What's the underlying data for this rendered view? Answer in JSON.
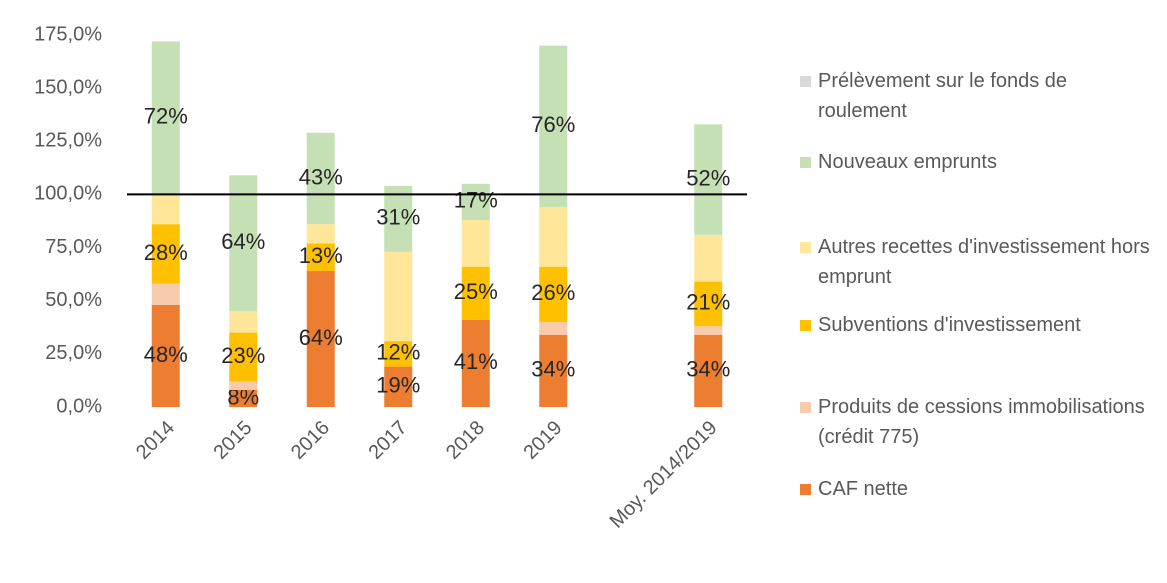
{
  "chart_data": {
    "type": "stacked_bar",
    "categories": [
      "2014",
      "2015",
      "2016",
      "2017",
      "2018",
      "2019",
      null,
      "Moy. 2014/2019"
    ],
    "series": [
      {
        "name": "CAF nette",
        "color": "#ed7d31",
        "values": [
          48,
          8,
          64,
          19,
          41,
          34,
          null,
          34
        ],
        "value_labels": [
          "48%",
          "8%",
          "64%",
          "19%",
          "41%",
          "34%",
          null,
          "34%"
        ]
      },
      {
        "name": "Produits de cessions immobilisations (crédit 775)",
        "color": "#f8cbad",
        "values": [
          10,
          4,
          0,
          0,
          0,
          6,
          null,
          4
        ]
      },
      {
        "name": "Subventions d'investissement",
        "color": "#ffc000",
        "values": [
          28,
          23,
          13,
          12,
          25,
          26,
          null,
          21
        ],
        "value_labels": [
          "28%",
          "23%",
          "13%",
          "12%",
          "25%",
          "26%",
          null,
          "21%"
        ]
      },
      {
        "name": "Autres recettes d'investissement hors emprunt",
        "color": "#ffe699",
        "values": [
          14,
          10,
          9,
          42,
          22,
          28,
          null,
          22
        ]
      },
      {
        "name": "Nouveaux emprunts",
        "color": "#c5e0b4",
        "values": [
          72,
          64,
          43,
          31,
          17,
          76,
          null,
          52
        ],
        "value_labels": [
          "72%",
          "64%",
          "43%",
          "31%",
          "17%",
          "76%",
          null,
          "52%"
        ]
      },
      {
        "name": "Prélèvement sur le fonds de roulement",
        "color": "#d9d9d9",
        "values": [
          0,
          0,
          0,
          0,
          0,
          0,
          null,
          0
        ]
      }
    ],
    "ylim": [
      0,
      175
    ],
    "yticks": [
      {
        "value": 0,
        "label": "0,0%"
      },
      {
        "value": 25,
        "label": "25,0%"
      },
      {
        "value": 50,
        "label": "50,0%"
      },
      {
        "value": 75,
        "label": "75,0%"
      },
      {
        "value": 100,
        "label": "100,0%"
      },
      {
        "value": 125,
        "label": "125,0%"
      },
      {
        "value": 150,
        "label": "150,0%"
      },
      {
        "value": 175,
        "label": "175,0%"
      }
    ],
    "hline": 100,
    "grid": false,
    "legend": "right"
  }
}
